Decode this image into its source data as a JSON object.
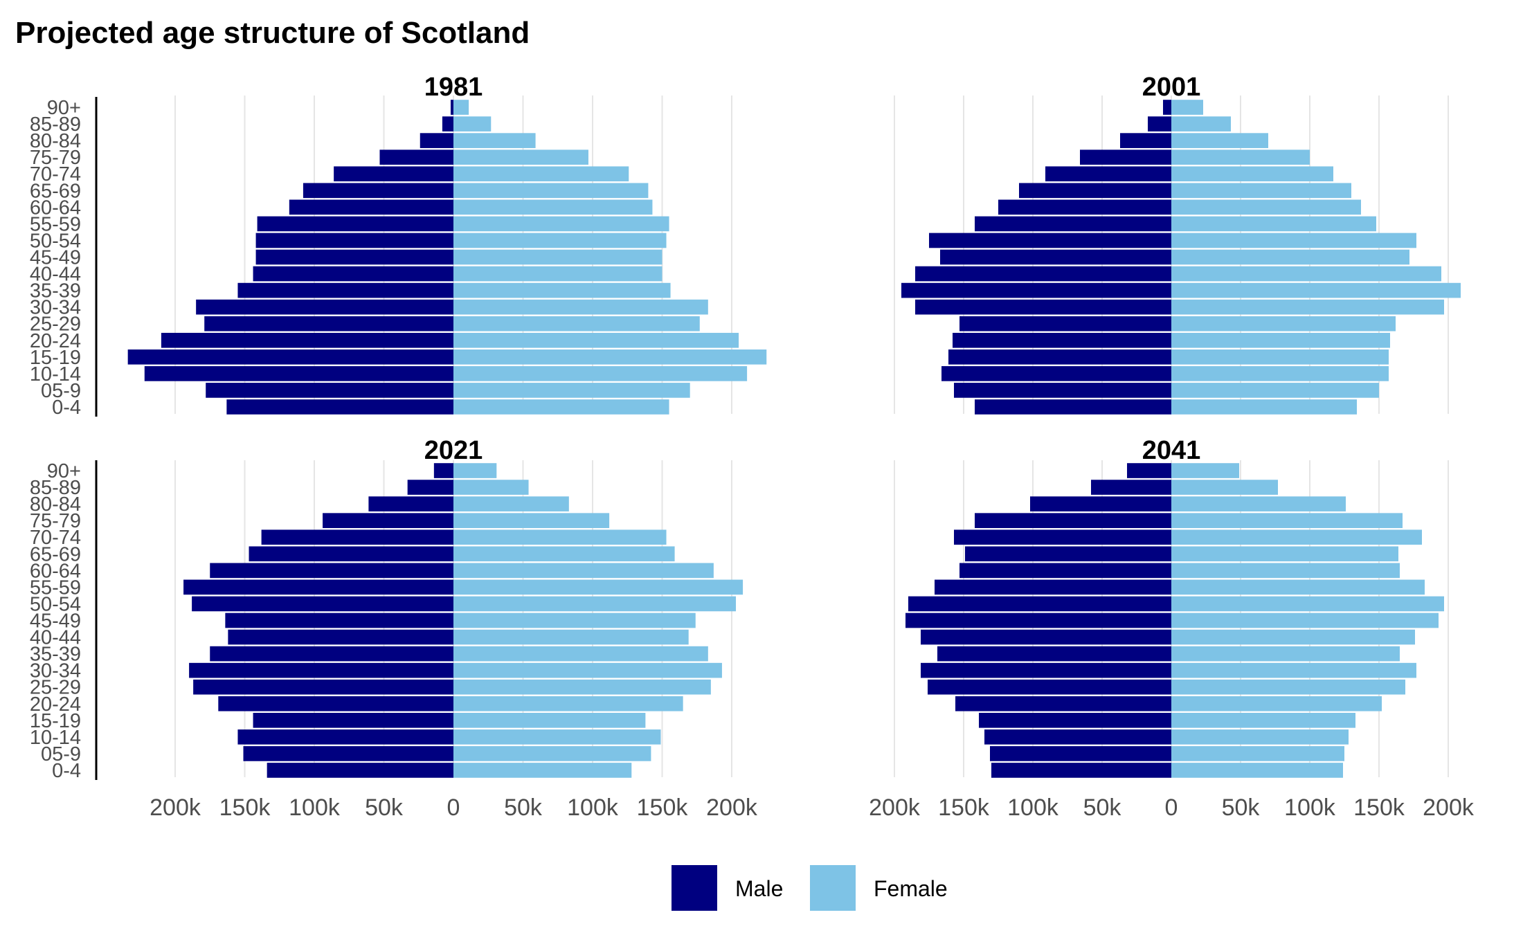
{
  "title": "Projected age structure of Scotland",
  "legend": {
    "position": "bottom",
    "items": [
      {
        "label": "Male",
        "color": "#000080"
      },
      {
        "label": "Female",
        "color": "#7ec3e6"
      }
    ]
  },
  "chart_data": {
    "type": "bar",
    "orientation": "horizontal",
    "subtype": "population-pyramid",
    "title": "Projected age structure of Scotland",
    "x_range": [
      -250000,
      250000
    ],
    "x_ticks": [
      -200000,
      -150000,
      -100000,
      -50000,
      0,
      50000,
      100000,
      150000,
      200000
    ],
    "x_tick_labels": [
      "200k",
      "150k",
      "100k",
      "50k",
      "0",
      "50k",
      "100k",
      "150k",
      "200k"
    ],
    "grid": true,
    "categories": [
      "0-4",
      "05-9",
      "10-14",
      "15-19",
      "20-24",
      "25-29",
      "30-34",
      "35-39",
      "40-44",
      "45-49",
      "50-54",
      "55-59",
      "60-64",
      "65-69",
      "70-74",
      "75-79",
      "80-84",
      "85-89",
      "90+"
    ],
    "panels": [
      {
        "title": "1981",
        "series": [
          {
            "name": "Male",
            "values": [
              163000,
              178000,
              222000,
              234000,
              210000,
              179000,
              185000,
              155000,
              144000,
              142000,
              142000,
              141000,
              118000,
              108000,
              86000,
              53000,
              24000,
              8000,
              2000
            ]
          },
          {
            "name": "Female",
            "values": [
              155000,
              170000,
              211000,
              225000,
              205000,
              177000,
              183000,
              156000,
              150000,
              150000,
              153000,
              155000,
              143000,
              140000,
              126000,
              97000,
              59000,
              27000,
              11000
            ]
          }
        ]
      },
      {
        "title": "2001",
        "series": [
          {
            "name": "Male",
            "values": [
              142000,
              157000,
              166000,
              161000,
              158000,
              153000,
              185000,
              195000,
              185000,
              167000,
              175000,
              142000,
              125000,
              110000,
              91000,
              66000,
              37000,
              17000,
              6000
            ]
          },
          {
            "name": "Female",
            "values": [
              134000,
              150000,
              157000,
              157000,
              158000,
              162000,
              197000,
              209000,
              195000,
              172000,
              177000,
              148000,
              137000,
              130000,
              117000,
              100000,
              70000,
              43000,
              23000
            ]
          }
        ]
      },
      {
        "title": "2021",
        "series": [
          {
            "name": "Male",
            "values": [
              134000,
              151000,
              155000,
              144000,
              169000,
              187000,
              190000,
              175000,
              162000,
              164000,
              188000,
              194000,
              175000,
              147000,
              138000,
              94000,
              61000,
              33000,
              14000
            ]
          },
          {
            "name": "Female",
            "values": [
              128000,
              142000,
              149000,
              138000,
              165000,
              185000,
              193000,
              183000,
              169000,
              174000,
              203000,
              208000,
              187000,
              159000,
              153000,
              112000,
              83000,
              54000,
              31000
            ]
          }
        ]
      },
      {
        "title": "2041",
        "series": [
          {
            "name": "Male",
            "values": [
              130000,
              131000,
              135000,
              139000,
              156000,
              176000,
              181000,
              169000,
              181000,
              192000,
              190000,
              171000,
              153000,
              149000,
              157000,
              142000,
              102000,
              58000,
              32000
            ]
          },
          {
            "name": "Female",
            "values": [
              124000,
              125000,
              128000,
              133000,
              152000,
              169000,
              177000,
              165000,
              176000,
              193000,
              197000,
              183000,
              165000,
              164000,
              181000,
              167000,
              126000,
              77000,
              49000
            ]
          }
        ]
      }
    ]
  }
}
